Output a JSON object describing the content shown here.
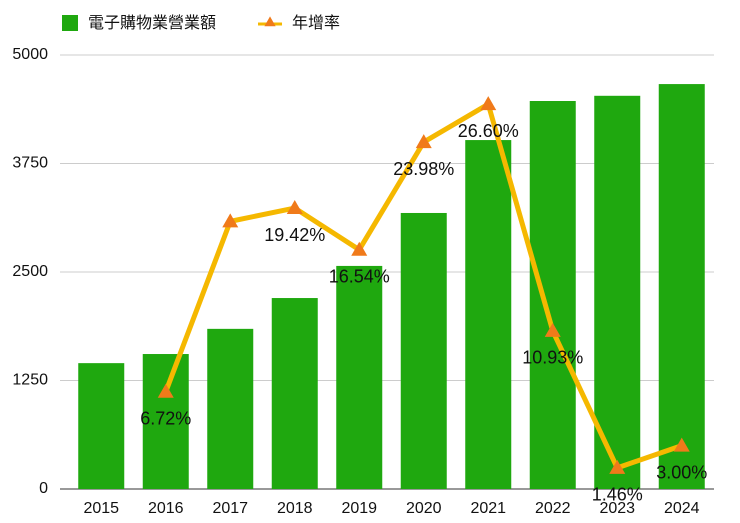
{
  "chart_data": {
    "type": "bar",
    "categories": [
      "2015",
      "2016",
      "2017",
      "2018",
      "2019",
      "2020",
      "2021",
      "2022",
      "2023",
      "2024"
    ],
    "series": [
      {
        "name": "電子購物業營業額",
        "type": "bar",
        "color": "#1fa80f",
        "values": [
          1450,
          1555,
          1845,
          2200,
          2570,
          3180,
          4020,
          4470,
          4530,
          4665
        ]
      },
      {
        "name": "年增率",
        "type": "line",
        "axis": "y2",
        "color": "#f5b800",
        "marker_color": "#f07a1a",
        "values": [
          null,
          6.72,
          18.5,
          19.42,
          16.54,
          23.98,
          26.6,
          10.93,
          1.46,
          3.0
        ],
        "value_labels": [
          null,
          "6.72%",
          null,
          "19.42%",
          "16.54%",
          "23.98%",
          "26.60%",
          "10.93%",
          "1.46%",
          "3.00%"
        ]
      }
    ],
    "ylim": [
      0,
      5000
    ],
    "yticks": [
      0,
      1250,
      2500,
      3750,
      5000
    ],
    "y2lim": [
      0,
      30
    ],
    "grid": true
  }
}
